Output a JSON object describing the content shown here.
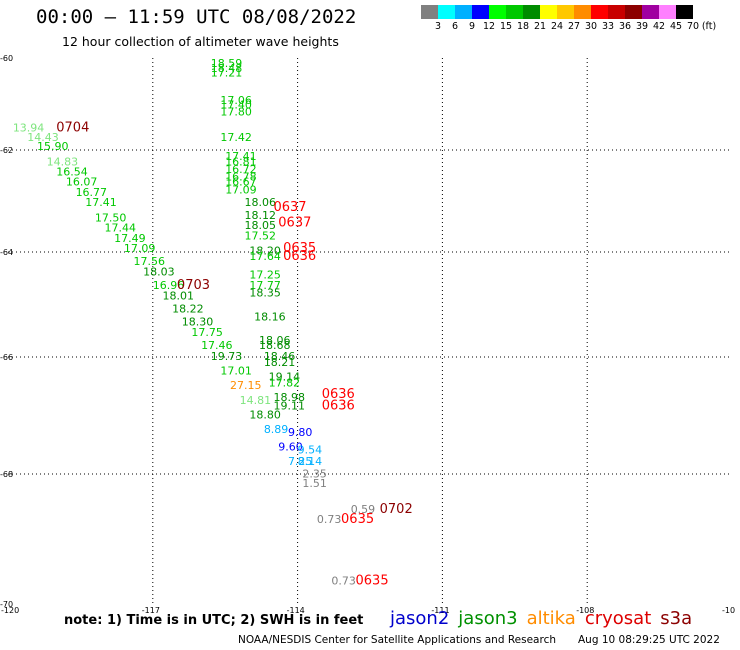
{
  "header": {
    "title": "00:00 – 11:59 UTC 08/08/2022",
    "subtitle": "12 hour collection of altimeter wave heights"
  },
  "legend": {
    "unit": "(ft)",
    "colors": [
      "#808080",
      "#00ffff",
      "#00b0ff",
      "#0000ff",
      "#00ff00",
      "#00c800",
      "#008c00",
      "#ffff00",
      "#ffc800",
      "#ff8c00",
      "#ff0000",
      "#c80000",
      "#8c0000",
      "#a000a0",
      "#ff80ff",
      "#000000"
    ],
    "labels": [
      "3",
      "6",
      "9",
      "12",
      "15",
      "18",
      "21",
      "24",
      "27",
      "30",
      "33",
      "36",
      "39",
      "42",
      "45",
      "70"
    ]
  },
  "axes": {
    "lon_labels": [
      "-120",
      "-117",
      "-114",
      "-111",
      "-108",
      "-10"
    ],
    "lat_labels": [
      "-60",
      "-62",
      "-64",
      "-66",
      "-68",
      "-70"
    ]
  },
  "chart_data": {
    "type": "scatter",
    "x_unit": "longitude (deg)",
    "y_unit": "latitude (deg)",
    "xlim": [
      -120,
      -105
    ],
    "ylim": [
      -70,
      -60
    ],
    "pass_labels": [
      {
        "text": "0704",
        "lon": -119.0,
        "lat": -61.6,
        "color": "#8c0000"
      },
      {
        "text": "0703",
        "lon": -116.5,
        "lat": -64.7,
        "color": "#8c0000"
      },
      {
        "text": "0637",
        "lon": -114.5,
        "lat": -63.2,
        "color": "#ff0000"
      },
      {
        "text": "0637",
        "lon": -114.4,
        "lat": -63.5,
        "color": "#ff0000"
      },
      {
        "text": "0635",
        "lon": -114.3,
        "lat": -64.0,
        "color": "#ff0000"
      },
      {
        "text": "0636",
        "lon": -114.3,
        "lat": -64.15,
        "color": "#ff0000"
      },
      {
        "text": "0636",
        "lon": -113.5,
        "lat": -66.7,
        "color": "#ff0000"
      },
      {
        "text": "0636",
        "lon": -113.5,
        "lat": -66.9,
        "color": "#ff0000"
      },
      {
        "text": "0702",
        "lon": -112.3,
        "lat": -68.6,
        "color": "#8c0000"
      },
      {
        "text": "0635",
        "lon": -113.1,
        "lat": -68.75,
        "color": "#ff0000"
      },
      {
        "text": "0635",
        "lon": -112.8,
        "lat": -69.7,
        "color": "#ff0000"
      }
    ],
    "points": [
      {
        "text": "13.94",
        "lon": -119.9,
        "lat": -61.6,
        "color": "#7ee57e"
      },
      {
        "text": "14.43",
        "lon": -119.6,
        "lat": -61.8,
        "color": "#7ee57e"
      },
      {
        "text": "15.90",
        "lon": -119.4,
        "lat": -62.0,
        "color": "#00c800"
      },
      {
        "text": "14.83",
        "lon": -119.2,
        "lat": -62.3,
        "color": "#7ee57e"
      },
      {
        "text": "16.54",
        "lon": -119.0,
        "lat": -62.5,
        "color": "#00c800"
      },
      {
        "text": "16.07",
        "lon": -118.8,
        "lat": -62.7,
        "color": "#00c800"
      },
      {
        "text": "16.77",
        "lon": -118.6,
        "lat": -62.9,
        "color": "#00c800"
      },
      {
        "text": "17.41",
        "lon": -118.4,
        "lat": -63.1,
        "color": "#00c800"
      },
      {
        "text": "17.50",
        "lon": -118.2,
        "lat": -63.4,
        "color": "#00c800"
      },
      {
        "text": "17.44",
        "lon": -118.0,
        "lat": -63.6,
        "color": "#00c800"
      },
      {
        "text": "17.49",
        "lon": -117.8,
        "lat": -63.8,
        "color": "#00c800"
      },
      {
        "text": "17.09",
        "lon": -117.6,
        "lat": -64.0,
        "color": "#00c800"
      },
      {
        "text": "17.56",
        "lon": -117.4,
        "lat": -64.25,
        "color": "#00c800"
      },
      {
        "text": "18.03",
        "lon": -117.2,
        "lat": -64.45,
        "color": "#008c00"
      },
      {
        "text": "16.96",
        "lon": -117.0,
        "lat": -64.7,
        "color": "#00c800"
      },
      {
        "text": "18.01",
        "lon": -116.8,
        "lat": -64.9,
        "color": "#008c00"
      },
      {
        "text": "18.22",
        "lon": -116.6,
        "lat": -65.15,
        "color": "#008c00"
      },
      {
        "text": "18.30",
        "lon": -116.4,
        "lat": -65.4,
        "color": "#008c00"
      },
      {
        "text": "17.75",
        "lon": -116.2,
        "lat": -65.6,
        "color": "#00c800"
      },
      {
        "text": "17.46",
        "lon": -116.0,
        "lat": -65.85,
        "color": "#00c800"
      },
      {
        "text": "19.73",
        "lon": -115.8,
        "lat": -66.05,
        "color": "#008c00"
      },
      {
        "text": "17.01",
        "lon": -115.6,
        "lat": -66.3,
        "color": "#00c800"
      },
      {
        "text": "27.15",
        "lon": -115.4,
        "lat": -66.55,
        "color": "#ff8c00"
      },
      {
        "text": "14.81",
        "lon": -115.2,
        "lat": -66.8,
        "color": "#7ee57e"
      },
      {
        "text": "18.80",
        "lon": -115.0,
        "lat": -67.05,
        "color": "#008c00"
      },
      {
        "text": "8.89",
        "lon": -114.7,
        "lat": -67.3,
        "color": "#00b0ff"
      },
      {
        "text": "9.60",
        "lon": -114.4,
        "lat": -67.6,
        "color": "#0000ff"
      },
      {
        "text": "7.25",
        "lon": -114.2,
        "lat": -67.85,
        "color": "#00b0ff"
      },
      {
        "text": "18.59",
        "lon": -115.8,
        "lat": -60.2,
        "color": "#00c800"
      },
      {
        "text": "18.48",
        "lon": -115.8,
        "lat": -60.3,
        "color": "#00c800"
      },
      {
        "text": "17.21",
        "lon": -115.8,
        "lat": -60.4,
        "color": "#00c800"
      },
      {
        "text": "17.06",
        "lon": -115.6,
        "lat": -61.0,
        "color": "#00c800"
      },
      {
        "text": "17.40",
        "lon": -115.6,
        "lat": -61.1,
        "color": "#00c800"
      },
      {
        "text": "17.80",
        "lon": -115.6,
        "lat": -61.25,
        "color": "#00c800"
      },
      {
        "text": "17.42",
        "lon": -115.6,
        "lat": -61.8,
        "color": "#00c800"
      },
      {
        "text": "17.41",
        "lon": -115.5,
        "lat": -62.2,
        "color": "#00c800"
      },
      {
        "text": "16.81",
        "lon": -115.5,
        "lat": -62.3,
        "color": "#00c800"
      },
      {
        "text": "16.72",
        "lon": -115.5,
        "lat": -62.45,
        "color": "#00c800"
      },
      {
        "text": "16.78",
        "lon": -115.5,
        "lat": -62.6,
        "color": "#00c800"
      },
      {
        "text": "16.67",
        "lon": -115.5,
        "lat": -62.7,
        "color": "#00c800"
      },
      {
        "text": "17.09",
        "lon": -115.5,
        "lat": -62.85,
        "color": "#00c800"
      },
      {
        "text": "18.06",
        "lon": -115.1,
        "lat": -63.1,
        "color": "#008c00"
      },
      {
        "text": "18.12",
        "lon": -115.1,
        "lat": -63.35,
        "color": "#008c00"
      },
      {
        "text": "18.05",
        "lon": -115.1,
        "lat": -63.55,
        "color": "#008c00"
      },
      {
        "text": "17.52",
        "lon": -115.1,
        "lat": -63.75,
        "color": "#00c800"
      },
      {
        "text": "18.20",
        "lon": -115.0,
        "lat": -64.05,
        "color": "#008c00"
      },
      {
        "text": "17.64",
        "lon": -115.0,
        "lat": -64.15,
        "color": "#00c800"
      },
      {
        "text": "17.25",
        "lon": -115.0,
        "lat": -64.5,
        "color": "#00c800"
      },
      {
        "text": "17.77",
        "lon": -115.0,
        "lat": -64.7,
        "color": "#00c800"
      },
      {
        "text": "18.35",
        "lon": -115.0,
        "lat": -64.85,
        "color": "#008c00"
      },
      {
        "text": "18.16",
        "lon": -114.9,
        "lat": -65.3,
        "color": "#008c00"
      },
      {
        "text": "18.06",
        "lon": -114.8,
        "lat": -65.75,
        "color": "#008c00"
      },
      {
        "text": "18.68",
        "lon": -114.8,
        "lat": -65.85,
        "color": "#008c00"
      },
      {
        "text": "18.46",
        "lon": -114.7,
        "lat": -66.05,
        "color": "#008c00"
      },
      {
        "text": "18.21",
        "lon": -114.7,
        "lat": -66.15,
        "color": "#008c00"
      },
      {
        "text": "19.14",
        "lon": -114.6,
        "lat": -66.4,
        "color": "#008c00"
      },
      {
        "text": "17.82",
        "lon": -114.6,
        "lat": -66.5,
        "color": "#00c800"
      },
      {
        "text": "18.98",
        "lon": -114.5,
        "lat": -66.75,
        "color": "#008c00"
      },
      {
        "text": "19.11",
        "lon": -114.5,
        "lat": -66.9,
        "color": "#008c00"
      },
      {
        "text": "9.80",
        "lon": -114.2,
        "lat": -67.35,
        "color": "#0000ff"
      },
      {
        "text": "9.54",
        "lon": -114.0,
        "lat": -67.65,
        "color": "#00b0ff"
      },
      {
        "text": "8.14",
        "lon": -114.0,
        "lat": -67.85,
        "color": "#00b0ff"
      },
      {
        "text": "2.35",
        "lon": -113.9,
        "lat": -68.05,
        "color": "#808080"
      },
      {
        "text": "1.51",
        "lon": -113.9,
        "lat": -68.2,
        "color": "#808080"
      },
      {
        "text": "0.59",
        "lon": -112.9,
        "lat": -68.6,
        "color": "#808080"
      },
      {
        "text": "0.73",
        "lon": -113.6,
        "lat": -68.75,
        "color": "#808080"
      },
      {
        "text": "0.73",
        "lon": -113.3,
        "lat": -69.7,
        "color": "#808080"
      }
    ]
  },
  "footer": {
    "note": "note:  1) Time is in UTC;  2) SWH is in feet",
    "satellites": [
      {
        "name": "jason2",
        "color": "#0000cc"
      },
      {
        "name": "jason3",
        "color": "#009000"
      },
      {
        "name": "altika",
        "color": "#ff8c00"
      },
      {
        "name": "cryosat",
        "color": "#dd0000"
      },
      {
        "name": "s3a",
        "color": "#8c0000"
      }
    ],
    "credit": "NOAA/NESDIS Center for Satellite Applications and Research",
    "timestamp": "Aug 10 08:29:25 UTC 2022"
  }
}
